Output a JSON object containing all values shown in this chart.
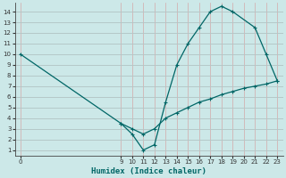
{
  "xlabel": "Humidex (Indice chaleur)",
  "bg_color": "#cce8e8",
  "line_color": "#006666",
  "x_curve": [
    0,
    9,
    10,
    11,
    12,
    13,
    14,
    15,
    16,
    17,
    18,
    19,
    21,
    22,
    23
  ],
  "y_curve": [
    10,
    3.5,
    2.5,
    1.0,
    1.5,
    5.5,
    9.0,
    11.0,
    12.5,
    14.0,
    14.5,
    14.0,
    12.5,
    10.0,
    7.5
  ],
  "x_line": [
    9,
    10,
    11,
    12,
    13,
    14,
    15,
    16,
    17,
    18,
    19,
    20,
    21,
    22,
    23
  ],
  "y_line": [
    3.5,
    3.0,
    2.5,
    3.0,
    4.0,
    4.5,
    5.0,
    5.5,
    5.8,
    6.2,
    6.5,
    6.8,
    7.0,
    7.2,
    7.5
  ],
  "xlim": [
    -0.5,
    23.5
  ],
  "ylim": [
    0.5,
    14.8
  ],
  "xticks": [
    0,
    9,
    10,
    11,
    12,
    13,
    14,
    15,
    16,
    17,
    18,
    19,
    20,
    21,
    22,
    23
  ],
  "yticks": [
    1,
    2,
    3,
    4,
    5,
    6,
    7,
    8,
    9,
    10,
    11,
    12,
    13,
    14
  ],
  "red_grid_color": "#d4a8a8",
  "teal_grid_color": "#aad0d0"
}
